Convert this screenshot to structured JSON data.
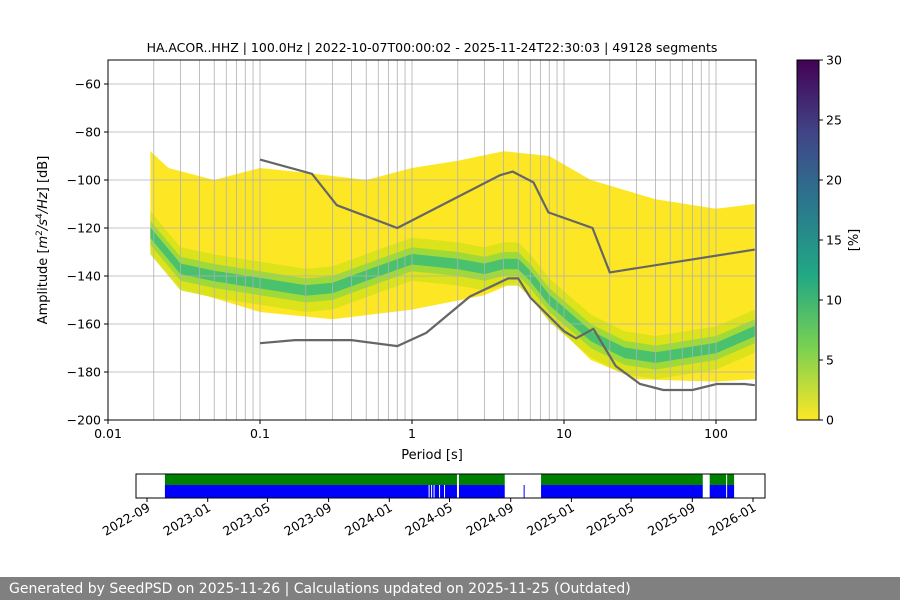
{
  "chart_data": {
    "type": "heatmap",
    "title": "HA.ACOR..HHZ | 100.0Hz | 2022-10-07T00:00:02 - 2025-11-24T22:30:03 | 49128 segments",
    "xlabel": "Period [s]",
    "ylabel": "Amplitude [m²/s⁴/Hz] [dB]",
    "xscale": "log",
    "xlim": [
      0.01,
      180
    ],
    "ylim": [
      -200,
      -50
    ],
    "xticks": [
      {
        "v": 0.01,
        "label": "0.01"
      },
      {
        "v": 0.1,
        "label": "0.1"
      },
      {
        "v": 1,
        "label": "1"
      },
      {
        "v": 10,
        "label": "10"
      },
      {
        "v": 100,
        "label": "100"
      }
    ],
    "yticks": [
      {
        "v": -60,
        "label": "−60"
      },
      {
        "v": -80,
        "label": "−80"
      },
      {
        "v": -100,
        "label": "−100"
      },
      {
        "v": -120,
        "label": "−120"
      },
      {
        "v": -140,
        "label": "−140"
      },
      {
        "v": -160,
        "label": "−160"
      },
      {
        "v": -180,
        "label": "−180"
      },
      {
        "v": -200,
        "label": "−200"
      }
    ],
    "grid": true,
    "envelope_upper": [
      [
        0.019,
        -88
      ],
      [
        0.025,
        -95
      ],
      [
        0.05,
        -100
      ],
      [
        0.1,
        -95
      ],
      [
        0.2,
        -97
      ],
      [
        0.5,
        -100
      ],
      [
        1,
        -95
      ],
      [
        2,
        -92
      ],
      [
        4,
        -88
      ],
      [
        8,
        -90
      ],
      [
        15,
        -100
      ],
      [
        40,
        -108
      ],
      [
        100,
        -112
      ],
      [
        180,
        -110
      ]
    ],
    "envelope_lower": [
      [
        0.019,
        -130
      ],
      [
        0.03,
        -145
      ],
      [
        0.1,
        -155
      ],
      [
        0.3,
        -158
      ],
      [
        1,
        -154
      ],
      [
        3,
        -148
      ],
      [
        5,
        -142
      ],
      [
        8,
        -158
      ],
      [
        15,
        -175
      ],
      [
        30,
        -183
      ],
      [
        100,
        -184
      ],
      [
        180,
        -183
      ]
    ],
    "mode_curve": [
      [
        0.019,
        -122
      ],
      [
        0.03,
        -137
      ],
      [
        0.05,
        -140
      ],
      [
        0.1,
        -143
      ],
      [
        0.2,
        -146
      ],
      [
        0.3,
        -145
      ],
      [
        0.6,
        -138
      ],
      [
        1,
        -133
      ],
      [
        2,
        -135
      ],
      [
        3,
        -137
      ],
      [
        4,
        -135
      ],
      [
        5,
        -135
      ],
      [
        6,
        -140
      ],
      [
        8,
        -150
      ],
      [
        15,
        -165
      ],
      [
        25,
        -172
      ],
      [
        40,
        -174
      ],
      [
        100,
        -170
      ],
      [
        180,
        -163
      ]
    ],
    "nhnm": [
      [
        0.1,
        -91.5
      ],
      [
        0.22,
        -97.4
      ],
      [
        0.32,
        -110.5
      ],
      [
        0.8,
        -120
      ],
      [
        3.8,
        -98
      ],
      [
        4.6,
        -96.5
      ],
      [
        6.3,
        -101
      ],
      [
        7.9,
        -113.5
      ],
      [
        15.4,
        -120
      ],
      [
        20,
        -138.5
      ],
      [
        180,
        -129
      ]
    ],
    "nlnm": [
      [
        0.1,
        -168
      ],
      [
        0.17,
        -166.7
      ],
      [
        0.4,
        -166.7
      ],
      [
        0.8,
        -169.2
      ],
      [
        1.24,
        -163.7
      ],
      [
        2.4,
        -148.6
      ],
      [
        4.3,
        -141
      ],
      [
        5,
        -141
      ],
      [
        6,
        -149
      ],
      [
        10,
        -163
      ],
      [
        12,
        -166
      ],
      [
        15.6,
        -162
      ],
      [
        21.9,
        -177.5
      ],
      [
        31.6,
        -185
      ],
      [
        45,
        -187.5
      ],
      [
        70,
        -187.5
      ],
      [
        101,
        -185
      ],
      [
        154,
        -185
      ],
      [
        180,
        -185.5
      ]
    ],
    "colorbar": {
      "label": "[%]",
      "range": [
        0,
        30
      ],
      "ticks": [
        "0",
        "5",
        "10",
        "15",
        "20",
        "25",
        "30"
      ],
      "colormap": "viridis_r"
    },
    "timeline": {
      "start": "2022-09-01",
      "end": "2026-01-01",
      "ticks": [
        "2022-09",
        "2023-01",
        "2023-05",
        "2023-09",
        "2024-01",
        "2024-05",
        "2024-09",
        "2025-01",
        "2025-05",
        "2025-09",
        "2026-01"
      ],
      "data_ranges": [
        [
          "2022-10-07",
          "2024-05-16"
        ],
        [
          "2024-05-20",
          "2024-08-20"
        ],
        [
          "2024-11-01",
          "2025-09-22"
        ],
        [
          "2025-10-06",
          "2025-11-08"
        ],
        [
          "2025-11-10",
          "2025-11-24"
        ]
      ],
      "blue_only": [
        [
          "2024-09-27",
          "2024-09-29"
        ]
      ],
      "blue_gaps": [
        "2024-03-20",
        "2024-03-25",
        "2024-03-30",
        "2024-04-10",
        "2024-04-20"
      ],
      "colors": {
        "used": "#008000",
        "available": "#0000ff"
      }
    }
  },
  "footer": "Generated by SeedPSD on 2025-11-26 | Calculations updated on 2025-11-25 (Outdated)"
}
